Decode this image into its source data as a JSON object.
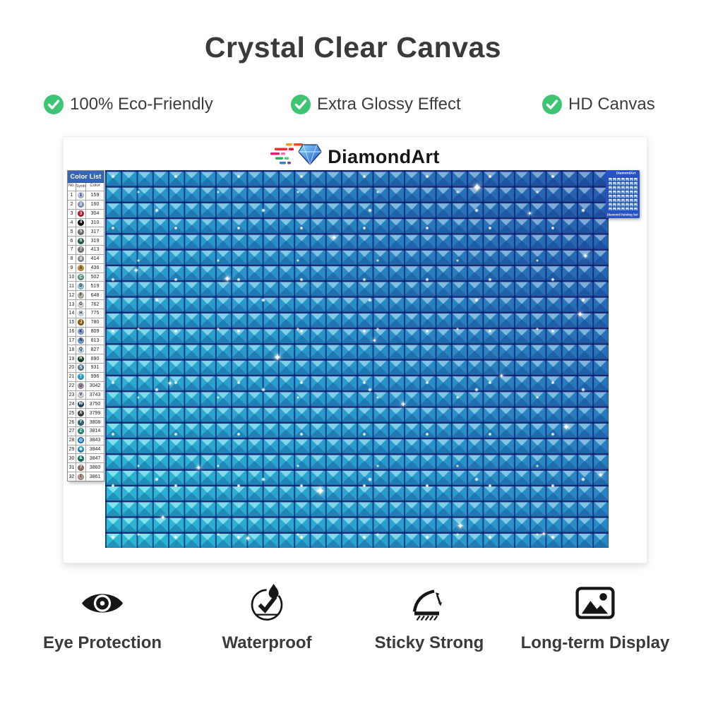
{
  "page": {
    "title": "Crystal Clear Canvas"
  },
  "features": [
    {
      "icon": "check-icon",
      "label": "100% Eco-Friendly"
    },
    {
      "icon": "check-icon",
      "label": "Extra Glossy Effect"
    },
    {
      "icon": "check-icon",
      "label": "HD Canvas"
    }
  ],
  "brand": {
    "name": "DiamondArt"
  },
  "colors": {
    "check_green": "#3ec573",
    "header_blue": "#3766b8",
    "canvas_dark_blue": "#2a63b4",
    "canvas_mid_blue": "#2fa9d8",
    "canvas_cyan": "#31d6e4",
    "thumb_blue": "#2853c8"
  },
  "color_list": {
    "title": "Color List",
    "headers": [
      "No.",
      "Symbol",
      "Color"
    ],
    "rows": [
      {
        "no": "1",
        "symbol": "1",
        "code": "159",
        "color": "#b6c0de"
      },
      {
        "no": "2",
        "symbol": "2",
        "code": "160",
        "color": "#8093c8"
      },
      {
        "no": "3",
        "symbol": "3",
        "code": "304",
        "color": "#b01c2e"
      },
      {
        "no": "4",
        "symbol": "4",
        "code": "310",
        "color": "#111111"
      },
      {
        "no": "5",
        "symbol": "5",
        "code": "317",
        "color": "#6e6e73"
      },
      {
        "no": "6",
        "symbol": "6",
        "code": "319",
        "color": "#276246"
      },
      {
        "no": "7",
        "symbol": "7",
        "code": "413",
        "color": "#75777b"
      },
      {
        "no": "8",
        "symbol": "8",
        "code": "414",
        "color": "#8b8d91"
      },
      {
        "no": "9",
        "symbol": "A",
        "code": "436",
        "color": "#c8913f"
      },
      {
        "no": "10",
        "symbol": "C",
        "code": "502",
        "color": "#5b9483"
      },
      {
        "no": "11",
        "symbol": "D",
        "code": "519",
        "color": "#94c6dc"
      },
      {
        "no": "12",
        "symbol": "F",
        "code": "648",
        "color": "#b0b3a8"
      },
      {
        "no": "13",
        "symbol": "G",
        "code": "762",
        "color": "#d6d8da"
      },
      {
        "no": "14",
        "symbol": "H",
        "code": "775",
        "color": "#dbe9f4"
      },
      {
        "no": "15",
        "symbol": "J",
        "code": "780",
        "color": "#8f5d12"
      },
      {
        "no": "16",
        "symbol": "K",
        "code": "809",
        "color": "#8ca6dd"
      },
      {
        "no": "17",
        "symbol": "N",
        "code": "813",
        "color": "#6f9fd0"
      },
      {
        "no": "18",
        "symbol": "Q",
        "code": "827",
        "color": "#bedcee"
      },
      {
        "no": "19",
        "symbol": "R",
        "code": "890",
        "color": "#17402a"
      },
      {
        "no": "20",
        "symbol": "S",
        "code": "931",
        "color": "#597b96"
      },
      {
        "no": "21",
        "symbol": "T",
        "code": "996",
        "color": "#1e9dd8"
      },
      {
        "no": "22",
        "symbol": "U",
        "code": "3042",
        "color": "#b09cac"
      },
      {
        "no": "23",
        "symbol": "V",
        "code": "3743",
        "color": "#d3ccda"
      },
      {
        "no": "24",
        "symbol": "W",
        "code": "3750",
        "color": "#28465c"
      },
      {
        "no": "25",
        "symbol": "X",
        "code": "3799",
        "color": "#3c3c42"
      },
      {
        "no": "26",
        "symbol": "Y",
        "code": "3808",
        "color": "#2a6570"
      },
      {
        "no": "27",
        "symbol": "Z",
        "code": "3814",
        "color": "#288a74"
      },
      {
        "no": "28",
        "symbol": "◎",
        "code": "3843",
        "color": "#1273c8"
      },
      {
        "no": "29",
        "symbol": "✱",
        "code": "3844",
        "color": "#128db8"
      },
      {
        "no": "30",
        "symbol": "&",
        "code": "3847",
        "color": "#0f7263"
      },
      {
        "no": "31",
        "symbol": "?",
        "code": "3860",
        "color": "#8a6f66"
      },
      {
        "no": "32",
        "symbol": "/",
        "code": "3861",
        "color": "#b39489"
      }
    ]
  },
  "thumbnail": {
    "brand": "DiamondArt",
    "caption": "Diamond Painting Set"
  },
  "benefits": [
    {
      "icon": "eye-icon",
      "label": "Eye Protection"
    },
    {
      "icon": "waterproof-icon",
      "label": "Waterproof"
    },
    {
      "icon": "sticky-strong-icon",
      "label": "Sticky Strong"
    },
    {
      "icon": "long-term-display-icon",
      "label": "Long-term Display"
    }
  ]
}
